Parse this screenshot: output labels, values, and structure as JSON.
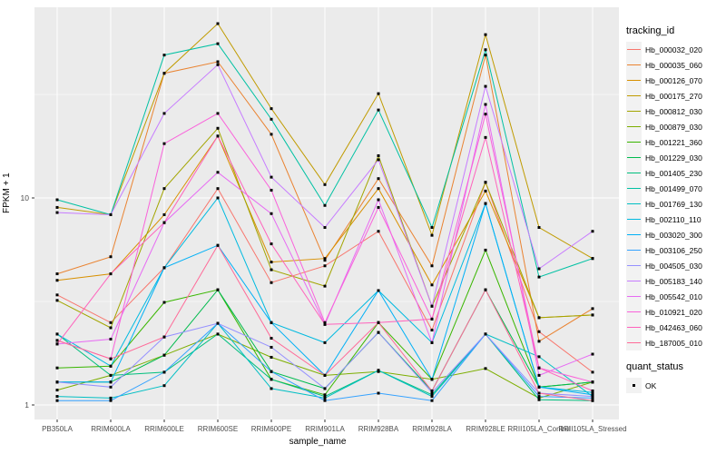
{
  "chart_data": {
    "type": "line",
    "title": "",
    "xlabel": "sample_name",
    "ylabel": "FPKM + 1",
    "yscale": "log10",
    "grid": true,
    "panel_bg": "#EBEBEB",
    "grid_color": "#FFFFFF",
    "point_color": "#000000",
    "tick_text_color": "#4D4D4D",
    "yticks": [
      {
        "label": "10",
        "value": 10
      },
      {
        "label": "1",
        "value": 1
      }
    ],
    "minor_gridlines": [
      3.162,
      31.62
    ],
    "categories": [
      "PB350LA",
      "RRIM600LA",
      "RRIM600LE",
      "RRIM600SE",
      "RRIM600PE",
      "RRIM901LA",
      "RRIM928BA",
      "RRIM928LA",
      "RRIM928LE",
      "RRII105LA_Control",
      "RRII105LA_Stressed"
    ],
    "legend": {
      "title": "tracking_id",
      "position": "right"
    },
    "quant_legend": {
      "title": "quant_status",
      "items": [
        {
          "label": "OK",
          "marker": "square",
          "color": "#000000"
        }
      ]
    },
    "series": [
      {
        "name": "Hb_000032_020",
        "color": "#F8766D",
        "values": [
          3.4,
          2.5,
          4.6,
          11.1,
          3.9,
          4.7,
          6.9,
          2.3,
          11.9,
          2.26,
          1.44
        ]
      },
      {
        "name": "Hb_000035_060",
        "color": "#EA8331",
        "values": [
          4.3,
          5.2,
          40,
          45.5,
          20.3,
          5.0,
          12.4,
          4.7,
          49,
          2.03,
          2.92
        ]
      },
      {
        "name": "Hb_000126_070",
        "color": "#D89000",
        "values": [
          4.0,
          4.3,
          8.3,
          19.9,
          4.9,
          5.1,
          11.1,
          3.8,
          10.8,
          2.64,
          2.72
        ]
      },
      {
        "name": "Hb_000175_270",
        "color": "#C09B00",
        "values": [
          9.0,
          8.3,
          40,
          69.5,
          27,
          11.6,
          31.9,
          6.6,
          61.5,
          7.2,
          5.1
        ]
      },
      {
        "name": "Hb_000812_030",
        "color": "#A3A500",
        "values": [
          3.2,
          2.36,
          11.1,
          21.7,
          4.5,
          3.75,
          16,
          3.0,
          11.9,
          2.64,
          2.72
        ]
      },
      {
        "name": "Hb_000879_030",
        "color": "#7CAE00",
        "values": [
          1.18,
          1.39,
          1.74,
          2.2,
          1.7,
          1.39,
          1.45,
          1.33,
          1.5,
          1.08,
          1.29
        ]
      },
      {
        "name": "Hb_001221_360",
        "color": "#39B600",
        "values": [
          1.51,
          1.54,
          3.13,
          3.6,
          1.33,
          1.12,
          2.5,
          1.33,
          5.6,
          1.22,
          1.29
        ]
      },
      {
        "name": "Hb_001229_030",
        "color": "#00BB4E",
        "values": [
          1.29,
          1.29,
          1.74,
          3.6,
          1.45,
          1.2,
          2.24,
          1.17,
          3.6,
          1.22,
          1.29
        ]
      },
      {
        "name": "Hb_001405_230",
        "color": "#00BF7D",
        "values": [
          2.2,
          1.39,
          1.44,
          2.2,
          1.33,
          1.1,
          1.47,
          1.12,
          2.2,
          1.06,
          1.05
        ]
      },
      {
        "name": "Hb_001499_070",
        "color": "#00C1A3",
        "values": [
          9.8,
          8.3,
          49,
          55.6,
          24,
          9.2,
          26.6,
          7.2,
          52,
          4.15,
          5.1
        ]
      },
      {
        "name": "Hb_001769_130",
        "color": "#00BFC4",
        "values": [
          1.1,
          1.08,
          1.24,
          2.48,
          1.2,
          1.08,
          1.47,
          1.1,
          2.2,
          1.71,
          1.1
        ]
      },
      {
        "name": "Hb_002110_110",
        "color": "#00BAE0",
        "values": [
          2.2,
          1.54,
          4.6,
          10,
          2.5,
          2.0,
          3.57,
          2.0,
          9.4,
          1.22,
          1.15
        ]
      },
      {
        "name": "Hb_003020_300",
        "color": "#00B0F6",
        "values": [
          1.29,
          1.29,
          4.6,
          5.9,
          2.5,
          1.39,
          3.57,
          1.33,
          9.4,
          1.22,
          1.12
        ]
      },
      {
        "name": "Hb_003106_250",
        "color": "#35A2FF",
        "values": [
          1.05,
          1.05,
          1.44,
          2.48,
          1.45,
          1.05,
          1.14,
          1.05,
          2.2,
          1.1,
          1.08
        ]
      },
      {
        "name": "Hb_004505_030",
        "color": "#9590FF",
        "values": [
          1.29,
          1.22,
          2.13,
          2.48,
          1.9,
          1.2,
          2.24,
          1.15,
          2.2,
          1.14,
          1.1
        ]
      },
      {
        "name": "Hb_005183_140",
        "color": "#C77CFF",
        "values": [
          8.5,
          8.3,
          25.6,
          44,
          12.6,
          7.2,
          15.3,
          3.0,
          34.6,
          4.55,
          6.9
        ]
      },
      {
        "name": "Hb_005542_010",
        "color": "#E76BF3",
        "values": [
          1.97,
          2.08,
          7.6,
          13.3,
          8.4,
          2.45,
          9.8,
          2.0,
          28.3,
          1.39,
          1.76
        ]
      },
      {
        "name": "Hb_010921_020",
        "color": "#FA62DB",
        "values": [
          2.05,
          1.67,
          18.3,
          25.6,
          10.9,
          2.5,
          9.0,
          2.6,
          25.4,
          1.51,
          1.29
        ]
      },
      {
        "name": "Hb_042463_060",
        "color": "#FF62BC",
        "values": [
          1.97,
          4.3,
          7.6,
          19.9,
          6.0,
          2.45,
          2.5,
          2.6,
          19.6,
          1.51,
          1.17
        ]
      },
      {
        "name": "Hb_187005_010",
        "color": "#FF6A98",
        "values": [
          2.05,
          1.67,
          2.13,
          5.9,
          2.1,
          1.39,
          2.5,
          1.17,
          3.6,
          1.14,
          1.05
        ]
      }
    ]
  }
}
